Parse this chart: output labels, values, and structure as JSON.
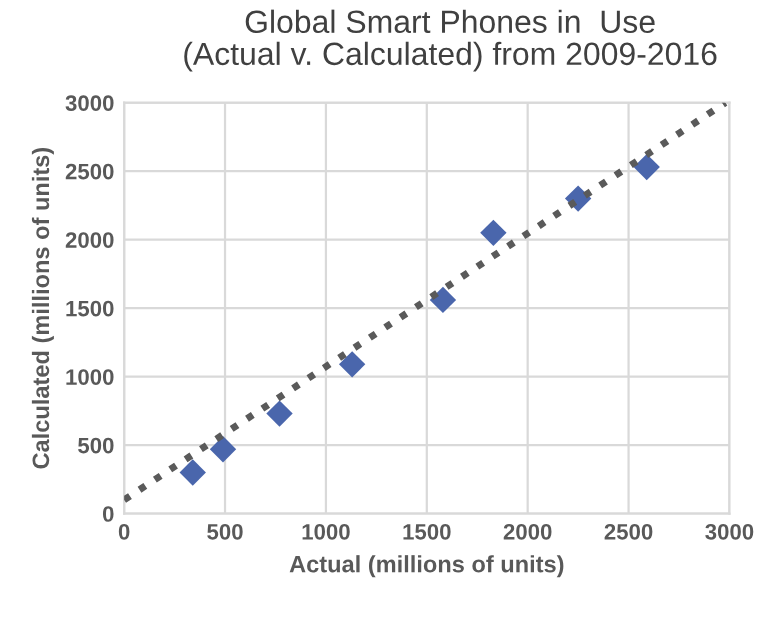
{
  "chart_data": {
    "type": "scatter",
    "title": "Global Smart Phones in  Use\n(Actual v. Calculated) from 2009-2016",
    "xlabel": "Actual (millions of units)",
    "ylabel": "Calculated (millions of units)",
    "series": [
      {
        "color": "#4a66ac",
        "marker": "diamond",
        "x": [
          340,
          490,
          770,
          1130,
          1580,
          1830,
          2250,
          2590
        ],
        "values": [
          300,
          470,
          730,
          1090,
          1560,
          2050,
          2300,
          2530
        ]
      },
      {
        "type": "line",
        "color": "#5a5a5a",
        "line_style": "dotted",
        "marker": "none",
        "x": [
          0,
          2980
        ],
        "values": [
          100,
          3000
        ]
      }
    ],
    "xlim": [
      0,
      3000
    ],
    "ylim": [
      0,
      3000
    ],
    "xticks": [
      0,
      500,
      1000,
      1500,
      2000,
      2500,
      3000
    ],
    "yticks": [
      0,
      500,
      1000,
      1500,
      2000,
      2500,
      3000
    ],
    "grid": true
  }
}
